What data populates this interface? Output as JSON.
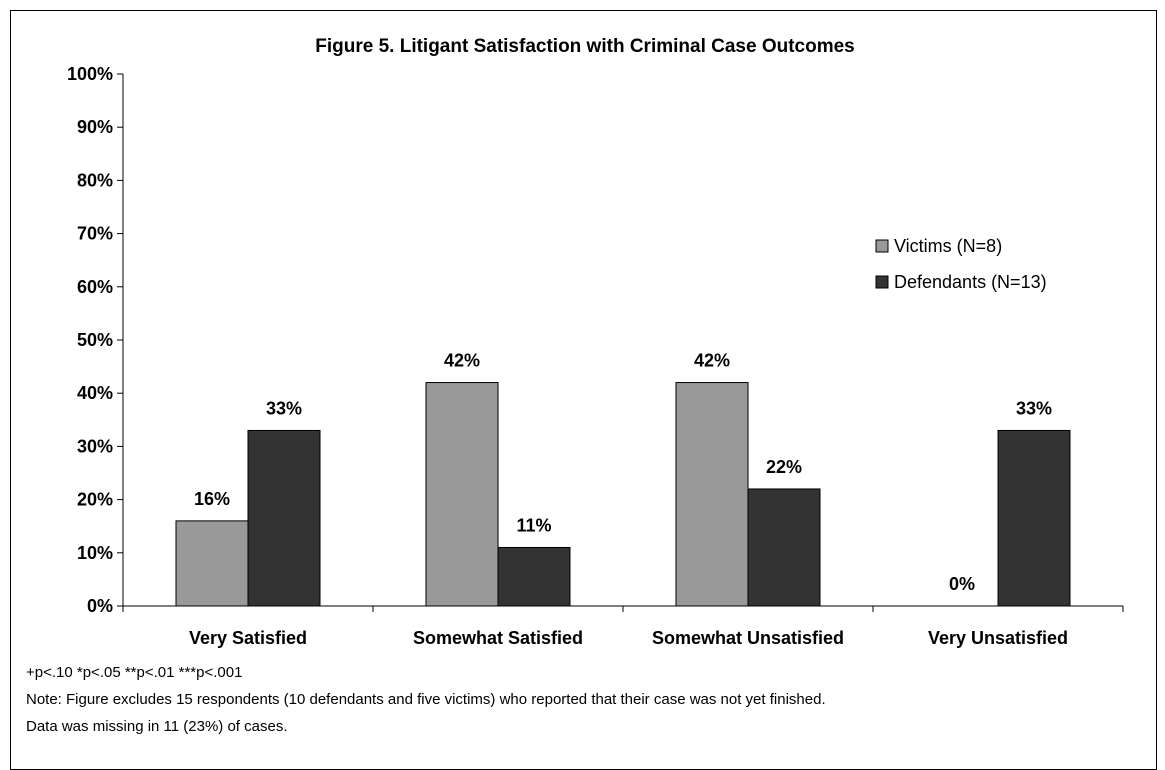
{
  "chart_data": {
    "type": "bar",
    "title": "Figure 5. Litigant Satisfaction with Criminal Case Outcomes",
    "categories": [
      "Very Satisfied",
      "Somewhat Satisfied",
      "Somewhat Unsatisfied",
      "Very Unsatisfied"
    ],
    "series": [
      {
        "name": "Victims (N=8)",
        "color": "#999999",
        "values": [
          16,
          42,
          42,
          0
        ],
        "labels": [
          "16%",
          "42%",
          "42%",
          "0%"
        ]
      },
      {
        "name": "Defendants (N=13)",
        "color": "#333333",
        "values": [
          33,
          11,
          22,
          33
        ],
        "labels": [
          "33%",
          "11%",
          "22%",
          "33%"
        ]
      }
    ],
    "ylim": [
      0,
      100
    ],
    "yticks": [
      0,
      10,
      20,
      30,
      40,
      50,
      60,
      70,
      80,
      90,
      100
    ],
    "ytick_labels": [
      "0%",
      "10%",
      "20%",
      "30%",
      "40%",
      "50%",
      "60%",
      "70%",
      "80%",
      "90%",
      "100%"
    ],
    "grid": false,
    "legend_position": "right"
  },
  "notes": {
    "significance": "+p<.10 *p<.05 **p<.01 ***p<.001",
    "line1": "Note: Figure excludes 15 respondents (10 defendants and five victims) who reported that their case was not yet finished.",
    "line2": "Data was missing in 11 (23%) of cases."
  }
}
